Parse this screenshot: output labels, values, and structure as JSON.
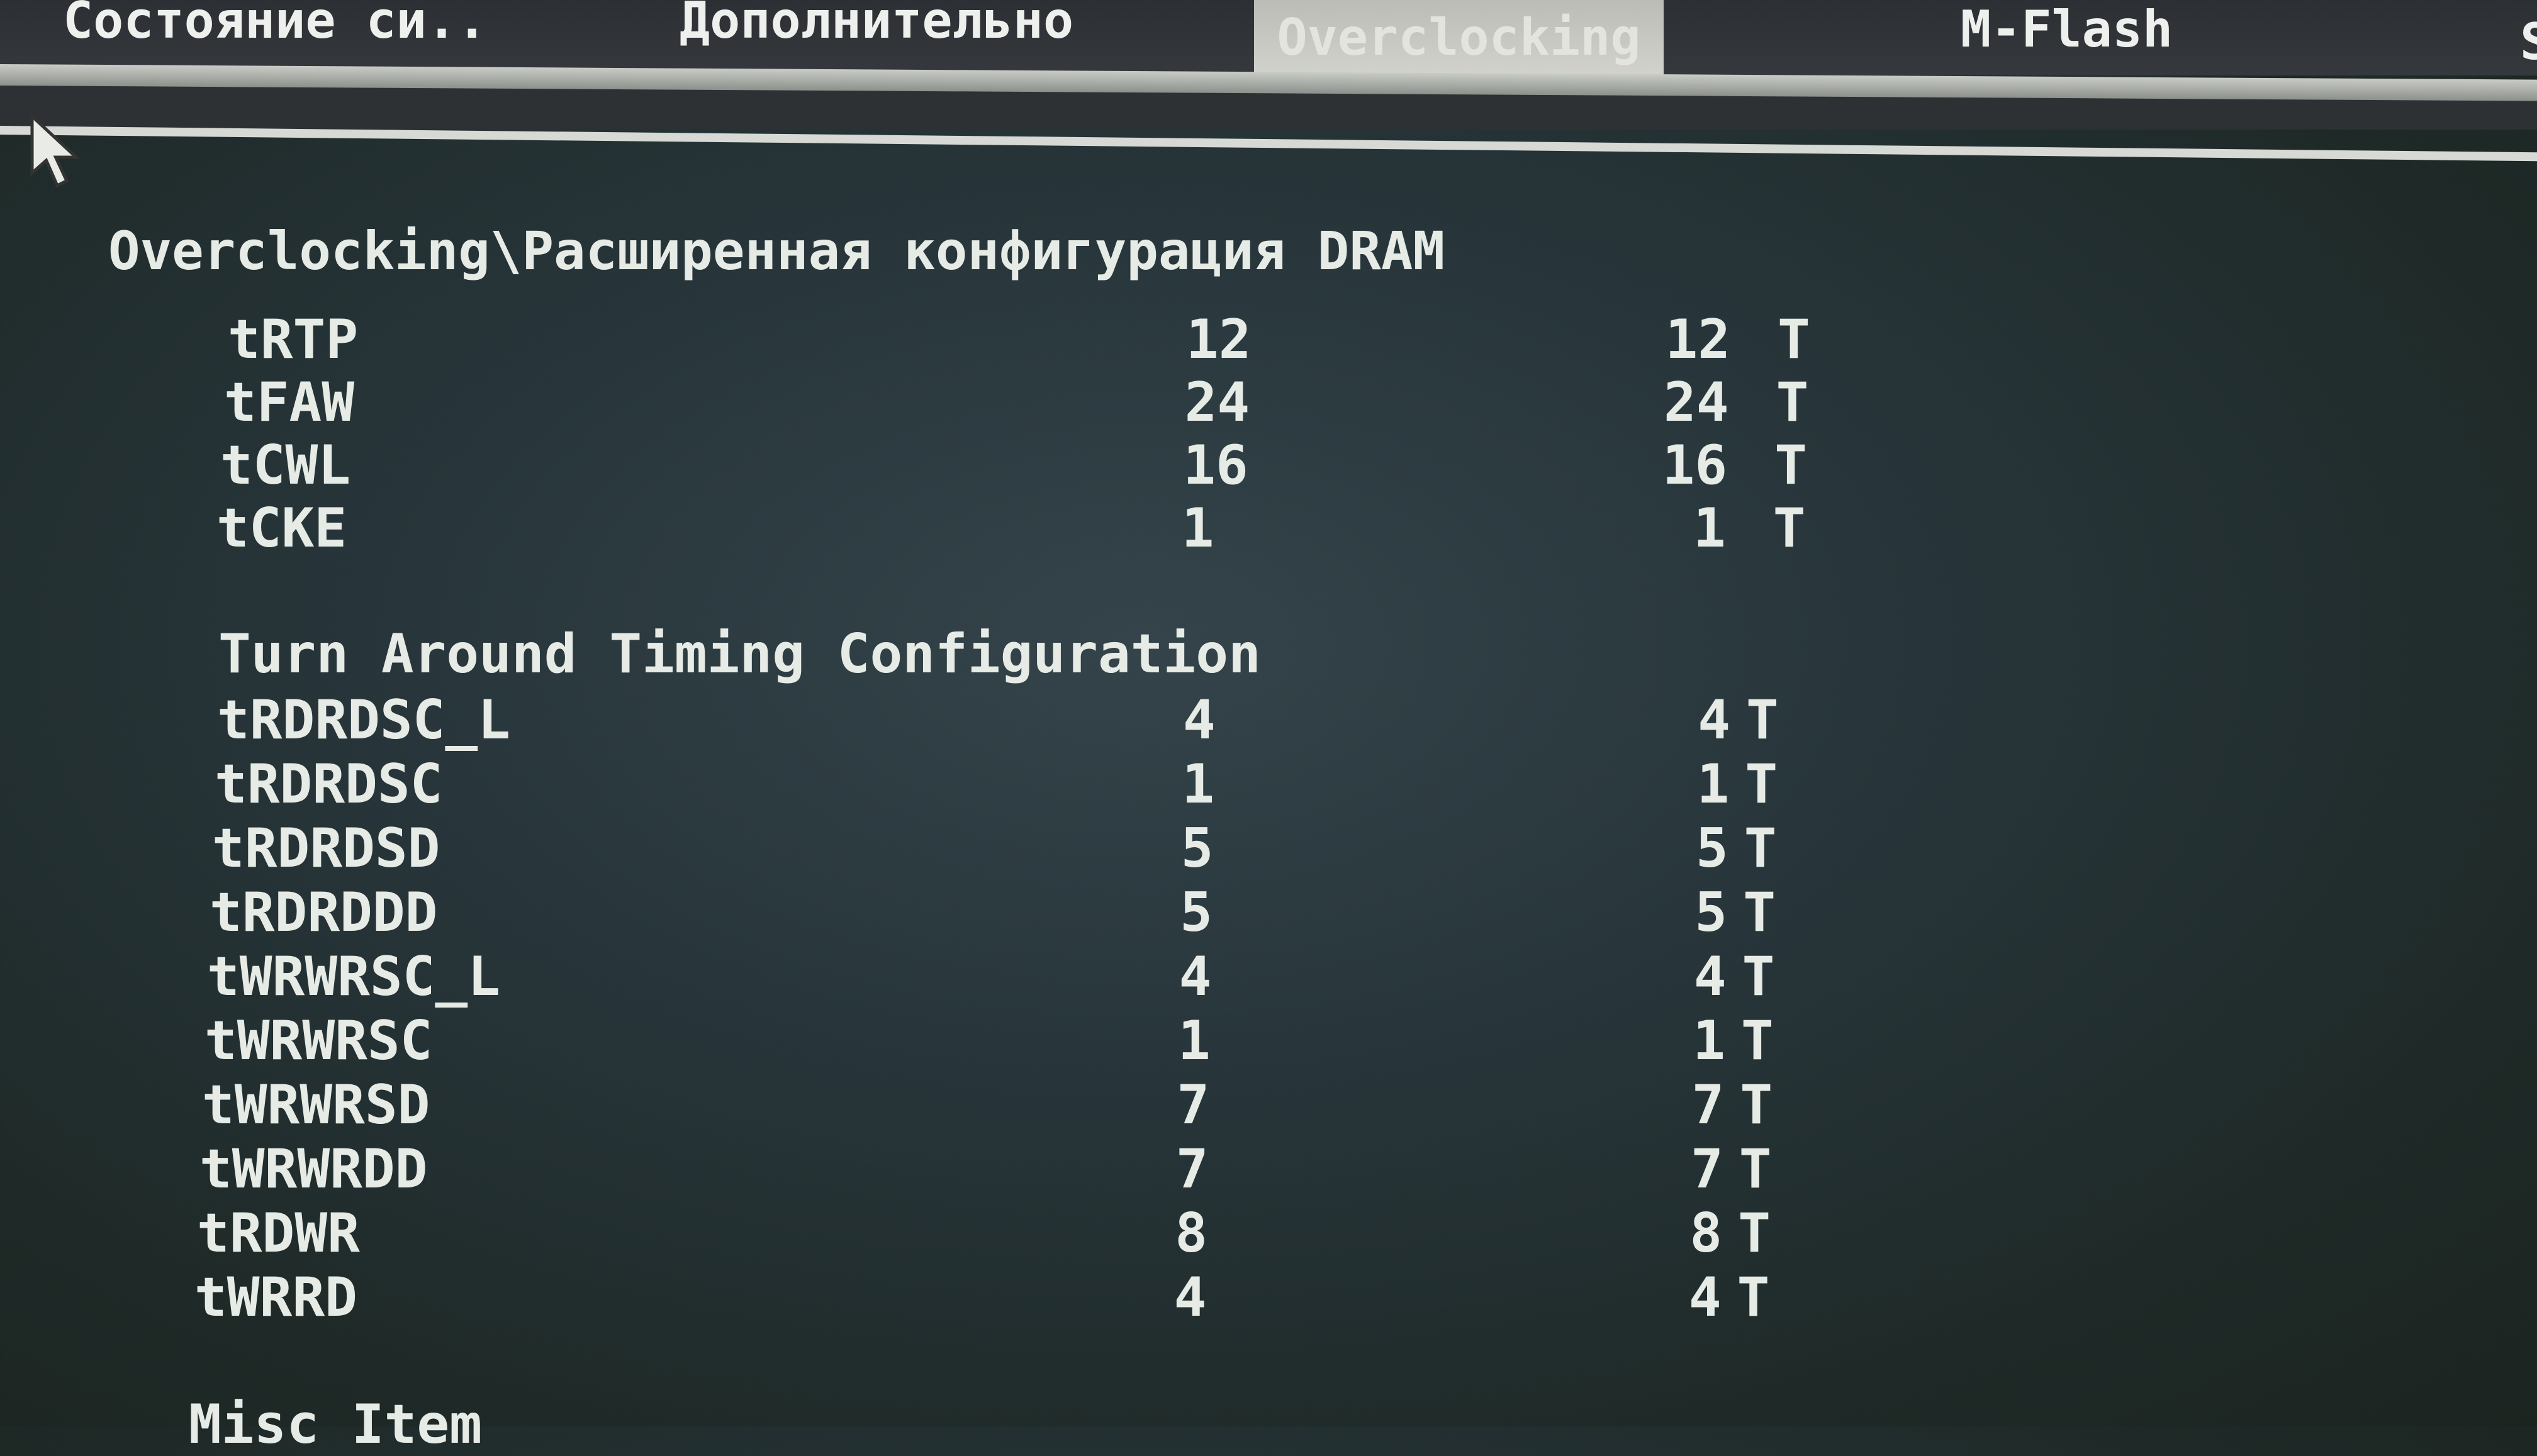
{
  "tabs": [
    {
      "label": "Состояние си..",
      "active": false
    },
    {
      "label": "Дополнительно",
      "active": false
    },
    {
      "label": "Overclocking",
      "active": true
    },
    {
      "label": "M-Flash",
      "active": false
    },
    {
      "label": "S",
      "active": false
    }
  ],
  "breadcrumb": "Overclocking\\Расширенная конфигурация DRAM",
  "timings_top": [
    {
      "name": "tRTP",
      "current": "12",
      "setting": "12",
      "unit": "T"
    },
    {
      "name": "tFAW",
      "current": "24",
      "setting": "24",
      "unit": "T"
    },
    {
      "name": "tCWL",
      "current": "16",
      "setting": "16",
      "unit": "T"
    },
    {
      "name": "tCKE",
      "current": "1",
      "setting": "1",
      "unit": "T"
    }
  ],
  "section_title": "Turn Around Timing Configuration",
  "timings_turnaround": [
    {
      "name": "tRDRDSC_L",
      "current": "4",
      "setting": "4",
      "unit": "T"
    },
    {
      "name": "tRDRDSC",
      "current": "1",
      "setting": "1",
      "unit": "T"
    },
    {
      "name": "tRDRDSD",
      "current": "5",
      "setting": "5",
      "unit": "T"
    },
    {
      "name": "tRDRDDD",
      "current": "5",
      "setting": "5",
      "unit": "T"
    },
    {
      "name": "tWRWRSC_L",
      "current": "4",
      "setting": "4",
      "unit": "T"
    },
    {
      "name": "tWRWRSC",
      "current": "1",
      "setting": "1",
      "unit": "T"
    },
    {
      "name": "tWRWRSD",
      "current": "7",
      "setting": "7",
      "unit": "T"
    },
    {
      "name": "tWRWRDD",
      "current": "7",
      "setting": "7",
      "unit": "T"
    },
    {
      "name": "tRDWR",
      "current": "8",
      "setting": "8",
      "unit": "T"
    },
    {
      "name": "tWRRD",
      "current": "4",
      "setting": "4",
      "unit": "T"
    }
  ],
  "misc_title": "Misc Item",
  "colors": {
    "text": "#e6ebe6",
    "active_tab": "#d0d0ca",
    "background": "#27353a"
  }
}
